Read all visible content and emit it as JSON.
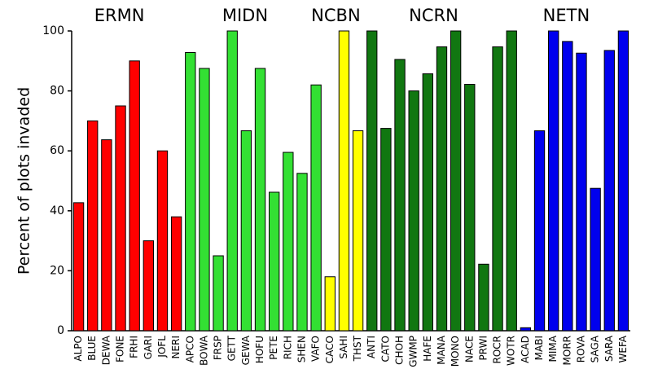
{
  "chart_data": {
    "type": "bar",
    "y_label": "Percent of plots invaded",
    "ylim": [
      0,
      100
    ],
    "yticks": [
      0,
      20,
      40,
      60,
      80,
      100
    ],
    "groups": [
      {
        "name": "ERMN",
        "color": "#ff0000",
        "categories": [
          "ALPO",
          "BLUE",
          "DEWA",
          "FONE",
          "FRHI",
          "GARI",
          "JOFL",
          "NERI"
        ],
        "values": [
          42.7,
          70,
          63.7,
          75,
          90,
          30,
          60,
          38
        ]
      },
      {
        "name": "MIDN",
        "color": "#33e033",
        "categories": [
          "APCO",
          "BOWA",
          "FRSP",
          "GETT",
          "GEWA",
          "HOFU",
          "PETE",
          "RICH",
          "SHEN",
          "VAFO"
        ],
        "values": [
          92.8,
          87.5,
          25,
          100,
          66.7,
          87.5,
          46.2,
          59.5,
          52.5,
          82
        ]
      },
      {
        "name": "NCBN",
        "color": "#ffff00",
        "categories": [
          "CACO",
          "SAHI",
          "THST"
        ],
        "values": [
          18,
          100,
          66.7
        ]
      },
      {
        "name": "NCRN",
        "color": "#117711",
        "categories": [
          "ANTI",
          "CATO",
          "CHOH",
          "GWMP",
          "HAFE",
          "MANA",
          "MONO",
          "NACE",
          "PRWI",
          "ROCR",
          "WOTR"
        ],
        "values": [
          100,
          67.5,
          90.5,
          80,
          85.7,
          94.7,
          100,
          82.2,
          22.2,
          94.7,
          100
        ]
      },
      {
        "name": "NETN",
        "color": "#0000ee",
        "categories": [
          "ACAD",
          "MABI",
          "MIMA",
          "MORR",
          "ROVA",
          "SAGA",
          "SARA",
          "WEFA"
        ],
        "values": [
          1,
          66.7,
          100,
          96.5,
          92.6,
          47.5,
          93.5,
          100
        ]
      }
    ]
  }
}
